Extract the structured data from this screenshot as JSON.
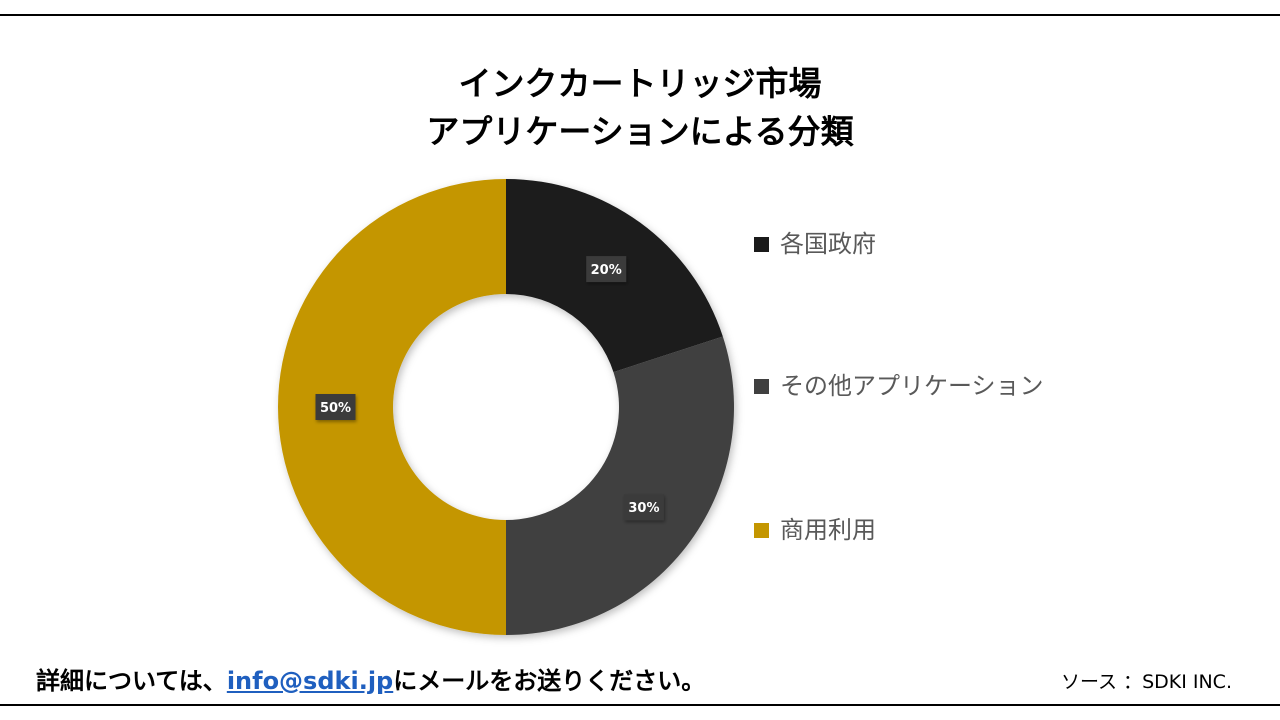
{
  "title_line1": "インクカートリッジ市場",
  "title_line2": "アプリケーションによる分類",
  "chart_data": {
    "type": "pie",
    "title": "インクカートリッジ市場 アプリケーションによる分類",
    "categories": [
      "各国政府",
      "その他アプリケーション",
      "商用利用"
    ],
    "values": [
      20,
      30,
      50
    ],
    "labels": [
      "20%",
      "30%",
      "50%"
    ],
    "colors": [
      "#1a1a1a",
      "#404040",
      "#c49600"
    ],
    "donut": true,
    "legend_placement": "right"
  },
  "legend": {
    "items": [
      {
        "label": "各国政府",
        "color": "#1a1a1a"
      },
      {
        "label": "その他アプリケーション",
        "color": "#404040"
      },
      {
        "label": "商用利用",
        "color": "#c49600"
      }
    ]
  },
  "footer": {
    "prefix": "詳細については、",
    "email": "info@sdki.jp",
    "suffix": "にメールをお送りください。",
    "source": "ソース ：SDKI INC."
  },
  "colors": {
    "label_box": "#3b3b3b",
    "label_text": "#ffffff",
    "link": "#1f5fbf"
  }
}
